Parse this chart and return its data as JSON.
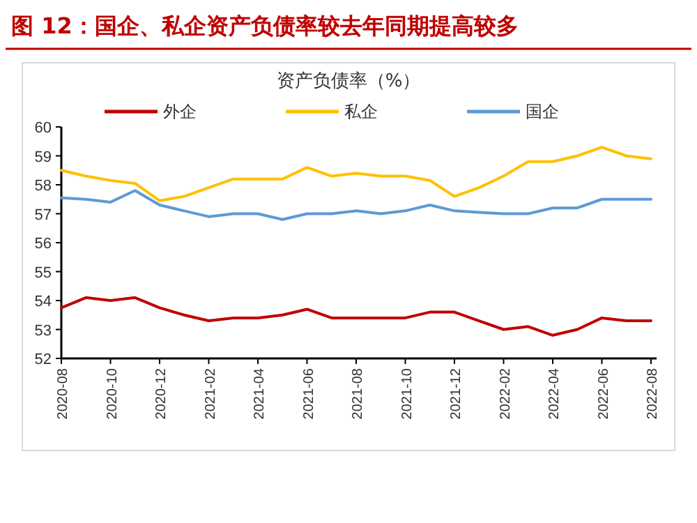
{
  "chart_data": {
    "type": "line",
    "title": "图 12：国企、私企资产负债率较去年同期提高较多",
    "subtitle": "资产负债率（%）",
    "categories": [
      "2020-08",
      null,
      "2020-10",
      null,
      "2020-12",
      null,
      "2021-02",
      null,
      "2021-04",
      null,
      "2021-06",
      null,
      "2021-08",
      null,
      "2021-10",
      null,
      "2021-12",
      null,
      "2022-02",
      null,
      "2022-04",
      null,
      "2022-06",
      null,
      "2022-08"
    ],
    "series": [
      {
        "name": "外企",
        "color": "#c00000",
        "values": [
          53.75,
          54.1,
          54.0,
          54.1,
          53.75,
          53.5,
          53.3,
          53.4,
          53.4,
          53.5,
          53.7,
          53.4,
          53.4,
          53.4,
          53.4,
          53.6,
          53.6,
          53.3,
          53.0,
          53.1,
          52.8,
          53.0,
          53.4,
          53.3,
          53.3
        ]
      },
      {
        "name": "私企",
        "color": "#ffc000",
        "values": [
          58.5,
          58.3,
          58.15,
          58.05,
          57.45,
          57.6,
          57.9,
          58.2,
          58.2,
          58.2,
          58.6,
          58.3,
          58.4,
          58.3,
          58.3,
          58.15,
          57.6,
          57.9,
          58.3,
          58.8,
          58.8,
          59.0,
          59.3,
          59.0,
          58.9
        ]
      },
      {
        "name": "国企",
        "color": "#5b9bd5",
        "values": [
          57.55,
          57.5,
          57.4,
          57.8,
          57.3,
          57.1,
          56.9,
          57.0,
          57.0,
          56.8,
          57.0,
          57.0,
          57.1,
          57.0,
          57.1,
          57.3,
          57.1,
          57.05,
          57.0,
          57.0,
          57.2,
          57.2,
          57.5,
          57.5,
          57.5
        ]
      }
    ],
    "ylim": [
      52,
      60
    ],
    "yticks": [
      52,
      53,
      54,
      55,
      56,
      57,
      58,
      59,
      60
    ],
    "legend": "top",
    "grid": false
  }
}
